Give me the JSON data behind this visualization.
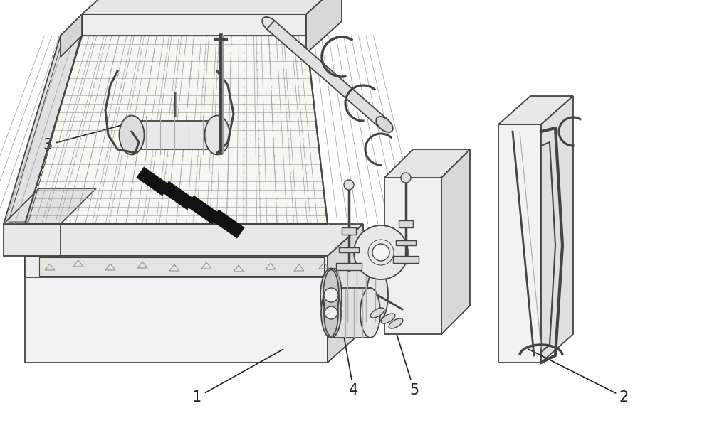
{
  "background_color": "#ffffff",
  "line_color": "#444444",
  "label_color": "#222222",
  "figsize": [
    10.0,
    5.95
  ],
  "dpi": 100
}
